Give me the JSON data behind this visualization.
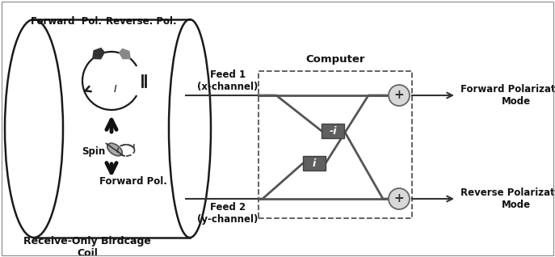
{
  "bg_color": "#ffffff",
  "coil_color": "#1a1a1a",
  "signal_color": "#555555",
  "text_color": "#111111",
  "coil_label": "Receive-Only Birdcage\nCoil",
  "forward_pol_top": "Forward  Pol.",
  "reverse_pol_top": "Reverse. Pol.",
  "spin_label": "Spin",
  "forward_pol_bottom": "Forward Pol.",
  "feed1_label": "Feed 1\n(x-channel)",
  "feed2_label": "Feed 2\n(y-channel)",
  "computer_label": "Computer",
  "forward_mode_label": "Forward Polarization\nMode",
  "reverse_mode_label": "Reverse Polarization\nMode",
  "minus_i_label": "-i",
  "plus_i_label": "i",
  "figsize": [
    6.87,
    3.18
  ],
  "dpi": 100
}
